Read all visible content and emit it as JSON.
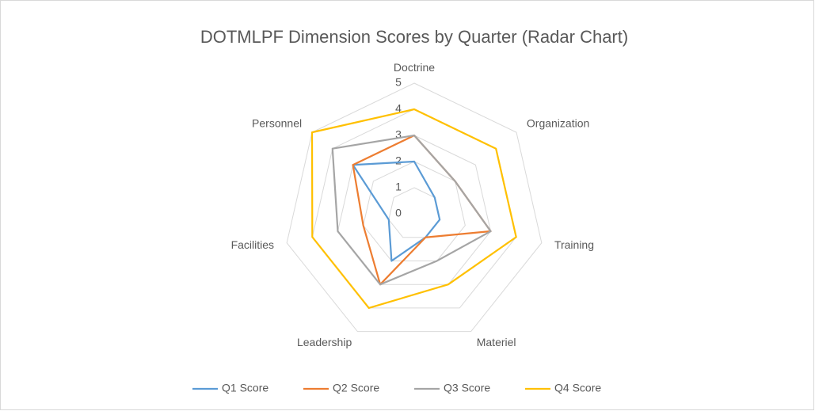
{
  "chart_data": {
    "type": "radar",
    "title": "DOTMLPF Dimension Scores by Quarter (Radar Chart)",
    "categories": [
      "Doctrine",
      "Organization",
      "Training",
      "Materiel",
      "Leadership",
      "Facilities",
      "Personnel"
    ],
    "series": [
      {
        "name": "Q1 Score",
        "color": "#5b9bd5",
        "values": [
          2,
          1,
          1,
          1,
          2,
          1,
          3
        ]
      },
      {
        "name": "Q2 Score",
        "color": "#ed7d31",
        "values": [
          3,
          2,
          3,
          1,
          3,
          2,
          3
        ]
      },
      {
        "name": "Q3 Score",
        "color": "#a5a5a5",
        "values": [
          3,
          2,
          3,
          2,
          3,
          3,
          4
        ]
      },
      {
        "name": "Q4 Score",
        "color": "#ffc000",
        "values": [
          4,
          4,
          4,
          3,
          4,
          4,
          5
        ]
      }
    ],
    "ylim": [
      0,
      5
    ],
    "yticks": [
      0,
      1,
      2,
      3,
      4,
      5
    ],
    "grid": true,
    "legend": "bottom"
  }
}
